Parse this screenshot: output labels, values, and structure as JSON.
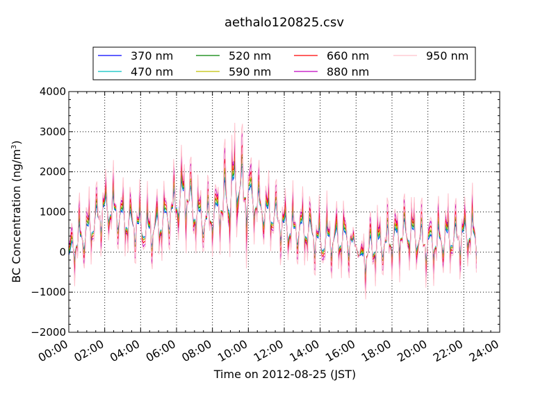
{
  "chart_data": {
    "type": "line",
    "title": "aethalo120825.csv",
    "xlabel": "Time on 2012-08-25 (JST)",
    "ylabel_main": "BC Concentration (ng/m",
    "ylabel_sup": "3",
    "ylabel_tail": ")",
    "xlim_hours": [
      0,
      24
    ],
    "ylim": [
      -2000,
      4000
    ],
    "xticks": [
      {
        "hour": 0,
        "label": "00:00"
      },
      {
        "hour": 2,
        "label": "02:00"
      },
      {
        "hour": 4,
        "label": "04:00"
      },
      {
        "hour": 6,
        "label": "06:00"
      },
      {
        "hour": 8,
        "label": "08:00"
      },
      {
        "hour": 10,
        "label": "10:00"
      },
      {
        "hour": 12,
        "label": "12:00"
      },
      {
        "hour": 14,
        "label": "14:00"
      },
      {
        "hour": 16,
        "label": "16:00"
      },
      {
        "hour": 18,
        "label": "18:00"
      },
      {
        "hour": 20,
        "label": "20:00"
      },
      {
        "hour": 22,
        "label": "22:00"
      },
      {
        "hour": 24,
        "label": "24:00"
      }
    ],
    "yticks": [
      {
        "value": -2000,
        "label": "−2000"
      },
      {
        "value": -1000,
        "label": "−1000"
      },
      {
        "value": 0,
        "label": "0"
      },
      {
        "value": 1000,
        "label": "1000"
      },
      {
        "value": 2000,
        "label": "2000"
      },
      {
        "value": 3000,
        "label": "3000"
      },
      {
        "value": 4000,
        "label": "4000"
      }
    ],
    "grid": true,
    "legend_position": "top",
    "legend_columns": 4,
    "baseline": [
      [
        0.0,
        -200
      ],
      [
        0.25,
        150
      ],
      [
        0.5,
        300
      ],
      [
        1.0,
        500
      ],
      [
        1.5,
        800
      ],
      [
        2.0,
        1100
      ],
      [
        2.5,
        1050
      ],
      [
        3.0,
        850
      ],
      [
        3.5,
        700
      ],
      [
        4.0,
        650
      ],
      [
        4.5,
        550
      ],
      [
        5.0,
        650
      ],
      [
        5.5,
        900
      ],
      [
        6.0,
        1250
      ],
      [
        6.5,
        1500
      ],
      [
        7.0,
        1000
      ],
      [
        7.5,
        800
      ],
      [
        8.0,
        900
      ],
      [
        8.5,
        1150
      ],
      [
        9.0,
        1400
      ],
      [
        9.3,
        1800
      ],
      [
        9.6,
        1600
      ],
      [
        10.0,
        1350
      ],
      [
        10.5,
        1200
      ],
      [
        11.0,
        1000
      ],
      [
        11.5,
        900
      ],
      [
        12.0,
        650
      ],
      [
        12.5,
        550
      ],
      [
        13.0,
        600
      ],
      [
        13.5,
        500
      ],
      [
        14.0,
        250
      ],
      [
        14.5,
        350
      ],
      [
        15.0,
        300
      ],
      [
        15.5,
        350
      ],
      [
        16.0,
        200
      ],
      [
        16.3,
        -200
      ],
      [
        16.7,
        50
      ],
      [
        17.0,
        150
      ],
      [
        17.5,
        250
      ],
      [
        18.0,
        300
      ],
      [
        18.5,
        450
      ],
      [
        19.0,
        500
      ],
      [
        19.5,
        350
      ],
      [
        20.0,
        200
      ],
      [
        20.5,
        250
      ],
      [
        21.0,
        400
      ],
      [
        21.5,
        350
      ],
      [
        22.0,
        450
      ],
      [
        22.5,
        500
      ],
      [
        22.7,
        250
      ]
    ],
    "series": [
      {
        "name": "370 nm",
        "color": "#0000ff",
        "amp": 0.55,
        "shift": -30
      },
      {
        "name": "470 nm",
        "color": "#00bfbf",
        "amp": 0.6,
        "shift": -20
      },
      {
        "name": "520 nm",
        "color": "#008000",
        "amp": 0.75,
        "shift": -10
      },
      {
        "name": "590 nm",
        "color": "#bfbf00",
        "amp": 0.8,
        "shift": 0
      },
      {
        "name": "660 nm",
        "color": "#ff0000",
        "amp": 1.0,
        "shift": 10
      },
      {
        "name": "880 nm",
        "color": "#bf00bf",
        "amp": 1.25,
        "shift": 20
      },
      {
        "name": "950 nm",
        "color": "#ffc0cb",
        "amp": 1.45,
        "shift": 30
      }
    ]
  }
}
